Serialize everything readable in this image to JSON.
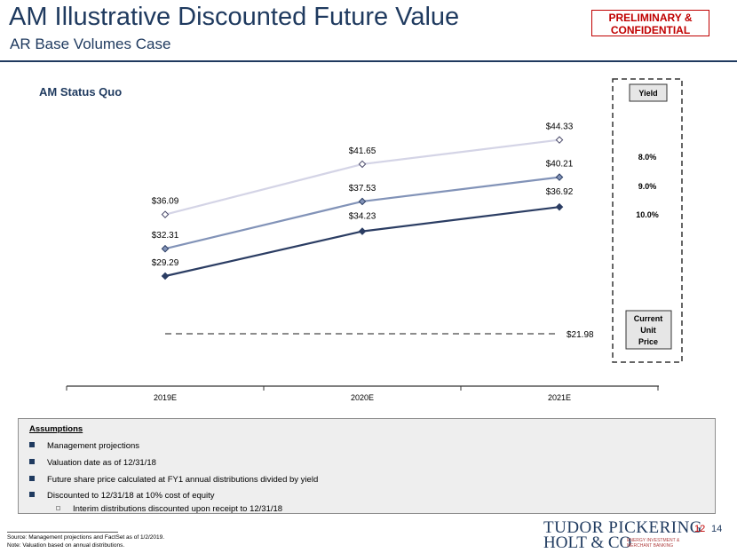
{
  "header": {
    "title": "AM Illustrative Discounted Future Value",
    "subtitle": "AR Base Volumes Case",
    "badge_line1": "PRELIMINARY &",
    "badge_line2": "CONFIDENTIAL"
  },
  "chart_data": {
    "type": "line",
    "subtitle": "AM Status Quo",
    "categories": [
      "2019E",
      "2020E",
      "2021E"
    ],
    "series": [
      {
        "name": "8.0%",
        "values": [
          36.09,
          41.65,
          44.33
        ],
        "labels": [
          "$36.09",
          "$41.65",
          "$44.33"
        ],
        "color": "#d4d4e6"
      },
      {
        "name": "9.0%",
        "values": [
          32.31,
          37.53,
          40.21
        ],
        "labels": [
          "$32.31",
          "$37.53",
          "$40.21"
        ],
        "color": "#8293b8"
      },
      {
        "name": "10.0%",
        "values": [
          29.29,
          34.23,
          36.92
        ],
        "labels": [
          "$29.29",
          "$34.23",
          "$36.92"
        ],
        "color": "#2b3d63"
      }
    ],
    "reference_line": {
      "name": "Current Unit Price",
      "value": 21.98,
      "label": "$21.98",
      "color": "#8c8c8c"
    },
    "legend": {
      "header": "Yield",
      "current_line1": "Current",
      "current_line2": "Unit",
      "current_line3": "Price"
    },
    "ylim": [
      15,
      50
    ],
    "grid": false
  },
  "assumptions": {
    "title": "Assumptions",
    "items": [
      "Management projections",
      "Valuation date as of 12/31/18",
      "Future share price calculated at FY1 annual distributions divided by yield",
      "Discounted to 12/31/18 at 10% cost of equity"
    ],
    "subitem": "Interim distributions discounted upon receipt to 12/31/18"
  },
  "footnotes": {
    "source": "Source: Management projections and FactSet as of 1/2/2019.",
    "note": "Note: Valuation based on annual distributions."
  },
  "logo": {
    "line1": "TUDOR PICKERING",
    "line2": "HOLT & CO",
    "tag1": "ENERGY INVESTMENT &",
    "tag2": "MERCHANT BANKING"
  },
  "page": {
    "a": "12",
    "b": "14"
  }
}
